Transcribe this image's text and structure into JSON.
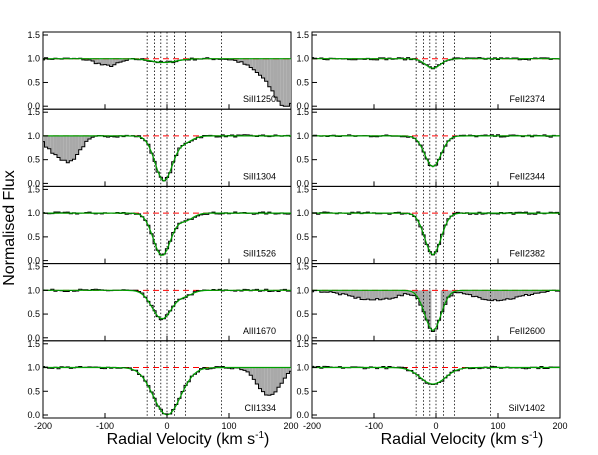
{
  "figure": {
    "ylabel": "Normalised Flux",
    "xlabel_main": "Radial Velocity (km s",
    "xlabel_sup": "-1",
    "xlabel_close": ")"
  },
  "chart_data": {
    "type": "line",
    "description_free": true,
    "xlim": [
      -200,
      200
    ],
    "ylim": [
      0.0,
      1.5
    ],
    "xticks": [
      -200,
      -100,
      0,
      100,
      200
    ],
    "yticks": [
      0.0,
      0.5,
      1.0,
      1.5
    ],
    "component_velocities": [
      -32,
      -20,
      -10,
      0,
      12,
      30,
      88
    ],
    "continuum_level": 1.0,
    "colors": {
      "data": "#000000",
      "model": "#00a000",
      "continuum": "#ff0000",
      "blend": "#a9a9a9"
    },
    "columns": [
      {
        "panels": [
          {
            "ion": "SiII1250",
            "absorption": [
              {
                "v": -5,
                "depth": 0.08,
                "sigma": 20
              }
            ],
            "blends": [
              {
                "v": -95,
                "depth": 0.15,
                "sigma": 18
              },
              {
                "v": 160,
                "depth": 0.3,
                "sigma": 25
              },
              {
                "v": 195,
                "depth": 0.9,
                "sigma": 20
              }
            ]
          },
          {
            "ion": "SiII1304",
            "absorption": [
              {
                "v": -5,
                "depth": 0.95,
                "sigma": 14
              },
              {
                "v": 30,
                "depth": 0.12,
                "sigma": 12
              }
            ],
            "blends": [
              {
                "v": -160,
                "depth": 0.55,
                "sigma": 18
              },
              {
                "v": -190,
                "depth": 0.15,
                "sigma": 10
              }
            ]
          },
          {
            "ion": "SiII1526",
            "absorption": [
              {
                "v": -8,
                "depth": 0.9,
                "sigma": 14
              },
              {
                "v": 30,
                "depth": 0.15,
                "sigma": 12
              }
            ],
            "blends": []
          },
          {
            "ion": "AlII1670",
            "absorption": [
              {
                "v": -8,
                "depth": 0.6,
                "sigma": 16
              },
              {
                "v": 30,
                "depth": 0.1,
                "sigma": 12
              }
            ],
            "blends": []
          },
          {
            "ion": "CII1334",
            "absorption": [
              {
                "v": 0,
                "depth": 1.0,
                "sigma": 22
              }
            ],
            "blends": [
              {
                "v": 165,
                "depth": 0.6,
                "sigma": 18
              }
            ]
          }
        ]
      },
      {
        "panels": [
          {
            "ion": "FeII2374",
            "absorption": [
              {
                "v": -5,
                "depth": 0.2,
                "sigma": 12
              }
            ],
            "blends": []
          },
          {
            "ion": "FeII2344",
            "absorption": [
              {
                "v": -5,
                "depth": 0.65,
                "sigma": 13
              }
            ],
            "blends": []
          },
          {
            "ion": "FeII2382",
            "absorption": [
              {
                "v": -5,
                "depth": 0.88,
                "sigma": 13
              }
            ],
            "blends": []
          },
          {
            "ion": "FeII2600",
            "absorption": [
              {
                "v": -5,
                "depth": 0.85,
                "sigma": 13
              }
            ],
            "blends": [
              {
                "v": -100,
                "depth": 0.2,
                "sigma": 40
              },
              {
                "v": 100,
                "depth": 0.2,
                "sigma": 40
              }
            ]
          },
          {
            "ion": "SiIV1402",
            "absorption": [
              {
                "v": -5,
                "depth": 0.35,
                "sigma": 20
              }
            ],
            "blends": []
          }
        ]
      }
    ]
  }
}
